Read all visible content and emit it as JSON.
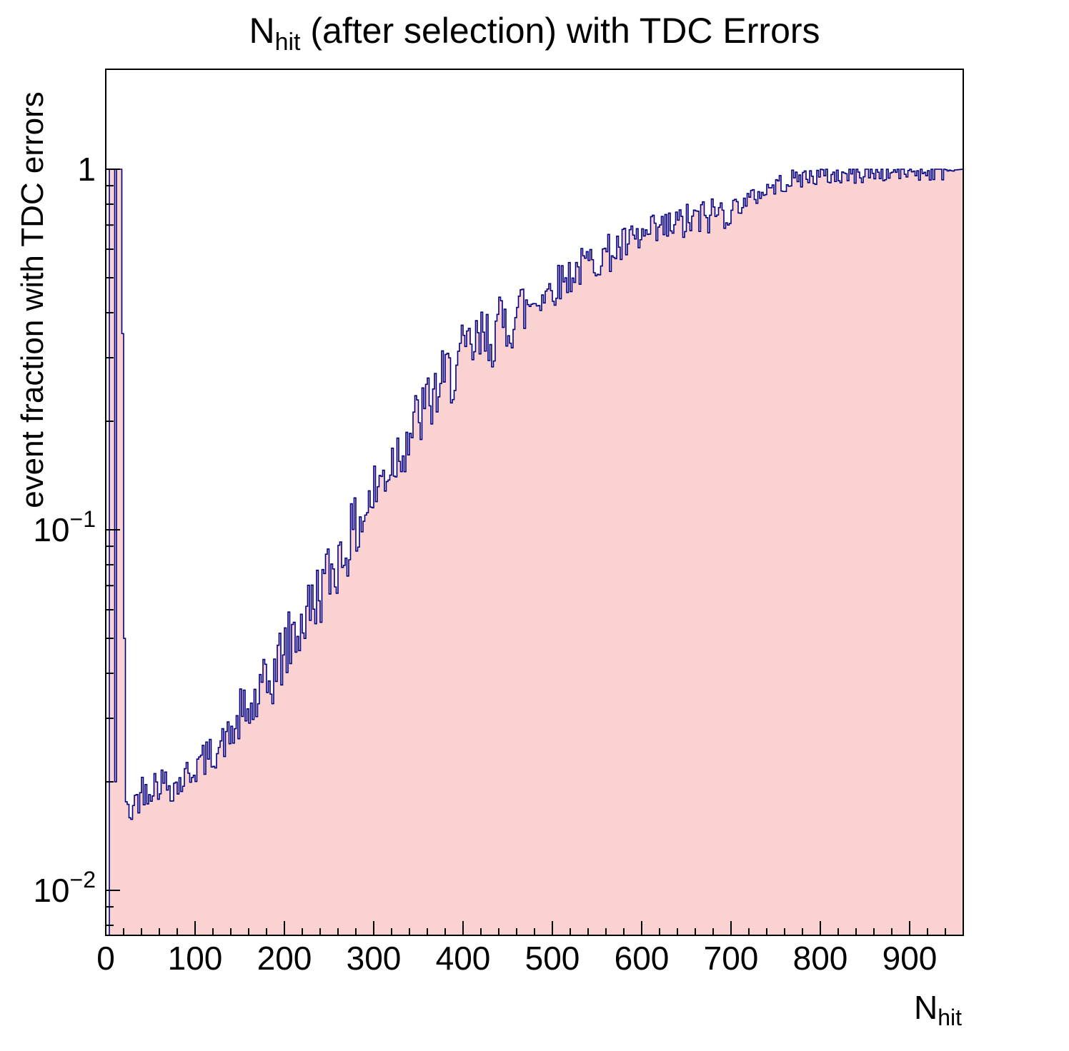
{
  "title": {
    "pre": "N",
    "sub": "hit",
    "rest": " (after selection) with TDC Errors"
  },
  "axes": {
    "x": {
      "label_pre": "N",
      "label_sub": "hit",
      "min": 0,
      "max": 960,
      "major_step": 100,
      "minor_step": 20,
      "tick_values": [
        0,
        100,
        200,
        300,
        400,
        500,
        600,
        700,
        800,
        900
      ],
      "tick_labels": [
        "0",
        "100",
        "200",
        "300",
        "400",
        "500",
        "600",
        "700",
        "800",
        "900"
      ]
    },
    "y": {
      "label": "event fraction with TDC errors",
      "scale": "log",
      "min": 0.0075,
      "max": 1.9,
      "ticks": [
        {
          "value": 1,
          "base": "1",
          "exp": ""
        },
        {
          "value": 0.1,
          "base": "10",
          "exp": "−1"
        },
        {
          "value": 0.01,
          "base": "10",
          "exp": "−2"
        }
      ]
    }
  },
  "chart_data": {
    "type": "bar",
    "subtype": "histogram",
    "title": "N_hit (after selection) with TDC Errors",
    "xlabel": "N_hit",
    "ylabel": "event fraction with TDC errors",
    "x_range": [
      0,
      960
    ],
    "y_range": [
      0.0075,
      1.9
    ],
    "y_scale": "log",
    "bin_width": 2,
    "fill_color": "#fbd2d2",
    "line_color": "#000080",
    "frame_color": "#000000",
    "spike_bins": [
      [
        0,
        0.0
      ],
      [
        2,
        0.006
      ],
      [
        4,
        1.0
      ],
      [
        6,
        1.0
      ],
      [
        8,
        1.0
      ],
      [
        10,
        0.02
      ],
      [
        12,
        1.0
      ],
      [
        14,
        1.0
      ],
      [
        16,
        1.0
      ],
      [
        18,
        0.35
      ],
      [
        20,
        0.05
      ]
    ],
    "trend": {
      "N": [
        22,
        30,
        40,
        60,
        80,
        100,
        120,
        140,
        160,
        180,
        200,
        220,
        240,
        260,
        280,
        300,
        320,
        340,
        360,
        380,
        400,
        420,
        440,
        460,
        480,
        500,
        520,
        540,
        560,
        580,
        600,
        620,
        640,
        660,
        680,
        700,
        720,
        740,
        760,
        780,
        800,
        820,
        840,
        860,
        880,
        900,
        920,
        940,
        960
      ],
      "f": [
        0.016,
        0.017,
        0.019,
        0.02,
        0.0195,
        0.022,
        0.024,
        0.027,
        0.031,
        0.036,
        0.046,
        0.055,
        0.068,
        0.082,
        0.1,
        0.125,
        0.155,
        0.185,
        0.22,
        0.26,
        0.3,
        0.33,
        0.36,
        0.4,
        0.43,
        0.47,
        0.51,
        0.55,
        0.58,
        0.61,
        0.64,
        0.67,
        0.7,
        0.72,
        0.75,
        0.78,
        0.82,
        0.88,
        0.92,
        0.95,
        0.96,
        0.96,
        0.97,
        0.98,
        0.98,
        0.99,
        0.99,
        0.99,
        1.0
      ]
    },
    "noise_decades": {
      "low": 0.05,
      "mid": 0.095,
      "high": 0.055,
      "top": 0.028
    },
    "seed": 42
  }
}
